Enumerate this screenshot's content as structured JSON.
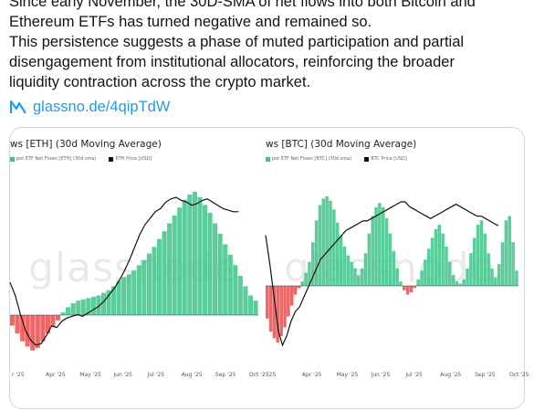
{
  "tweet": {
    "lines": [
      "Since early November, the 30D-SMA of net flows into both Bitcoin and",
      "Ethereum ETFs has turned negative and remained so.",
      "This persistence suggests a phase of muted participation and partial",
      "disengagement from institutional allocators, reinforcing the broader",
      "liquidity contraction across the crypto market."
    ],
    "link_icon": "glassnode-logo-icon",
    "link_text": "glassno.de/4qipTdW"
  },
  "colors": {
    "inflow": "#3ec48a",
    "outflow": "#f04a4a",
    "price": "#111111",
    "link": "#1d9bf0"
  },
  "charts": [
    {
      "title": "ws [ETH] (30d Moving Average)",
      "legend": [
        "pot ETF Net Flows [ETH] (30d sma)",
        "ETH Price [USD]"
      ],
      "watermark": "glassnode",
      "x_ticks": [
        "r '25",
        "Apr '25",
        "May '25",
        "Jun '25",
        "Jul '25",
        "Aug '25",
        "Sep '25",
        "Oct '25"
      ]
    },
    {
      "title": "ws [BTC] (30d Moving Average)",
      "legend": [
        "pot ETF Net Flows [BTC] (30d sma)",
        "BTC Price [USD]"
      ],
      "watermark": "glassnode",
      "x_ticks": [
        "'25",
        "Apr '25",
        "May '25",
        "Jun '25",
        "Jul '25",
        "Aug '25",
        "Sep '25",
        "Oct '25"
      ]
    }
  ],
  "chart_data": [
    {
      "type": "bar",
      "title": "ws [ETH] (30d Moving Average)",
      "series": [
        {
          "name": "pot ETF Net Flows [ETH] (30d sma)",
          "values": [
            -8,
            -14,
            -20,
            -24,
            -27,
            -25,
            -20,
            -14,
            -9,
            -4,
            2,
            6,
            9,
            11,
            12,
            13,
            14,
            15,
            17,
            19,
            22,
            26,
            29,
            31,
            34,
            38,
            42,
            47,
            52,
            58,
            64,
            70,
            76,
            82,
            88,
            92,
            94,
            90,
            84,
            78,
            70,
            62,
            54,
            46,
            38,
            30,
            22,
            15,
            11
          ]
        },
        {
          "name": "ETH Price [USD]",
          "values": [
            48,
            40,
            28,
            18,
            12,
            9,
            10,
            15,
            21,
            20,
            24,
            26,
            27,
            28,
            27,
            29,
            31,
            33,
            36,
            40,
            44,
            49,
            55,
            62,
            70,
            78,
            84,
            88,
            92,
            94,
            98,
            100,
            101,
            99,
            98,
            96,
            97,
            99,
            100,
            98,
            96,
            94,
            93,
            92,
            92
          ]
        }
      ]
    },
    {
      "type": "bar",
      "title": "ws [BTC] (30d Moving Average)",
      "series": [
        {
          "name": "pot ETF Net Flows [BTC] (30d sma)",
          "values": [
            -30,
            -42,
            -48,
            -52,
            -46,
            -38,
            -28,
            -18,
            -8,
            -2,
            4,
            12,
            22,
            40,
            60,
            74,
            80,
            82,
            78,
            70,
            58,
            46,
            36,
            28,
            22,
            16,
            10,
            16,
            30,
            48,
            64,
            72,
            76,
            72,
            62,
            48,
            32,
            16,
            4,
            -4,
            -8,
            -6,
            -2,
            6,
            14,
            24,
            34,
            44,
            52,
            56,
            48,
            36,
            22,
            10,
            4,
            2,
            6,
            16,
            30,
            44,
            56,
            60,
            48,
            30,
            16,
            8,
            20,
            40,
            60,
            64,
            40,
            14
          ]
        },
        {
          "name": "BTC Price [USD]",
          "values": [
            52,
            40,
            26,
            12,
            6,
            10,
            16,
            20,
            22,
            26,
            30,
            34,
            38,
            42,
            44,
            46,
            48,
            50,
            52,
            54,
            55,
            56,
            57,
            58,
            58,
            59,
            60,
            61,
            62,
            63,
            64,
            65,
            66,
            66,
            64,
            63,
            62,
            61,
            60,
            59,
            60,
            61,
            62,
            63,
            64,
            65,
            64,
            63,
            62,
            61,
            60,
            60,
            59,
            58,
            57,
            56
          ]
        }
      ]
    }
  ]
}
